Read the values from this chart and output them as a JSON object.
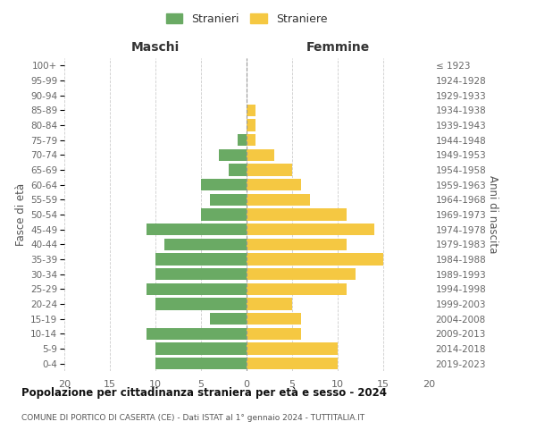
{
  "age_groups": [
    "0-4",
    "5-9",
    "10-14",
    "15-19",
    "20-24",
    "25-29",
    "30-34",
    "35-39",
    "40-44",
    "45-49",
    "50-54",
    "55-59",
    "60-64",
    "65-69",
    "70-74",
    "75-79",
    "80-84",
    "85-89",
    "90-94",
    "95-99",
    "100+"
  ],
  "birth_years": [
    "2019-2023",
    "2014-2018",
    "2009-2013",
    "2004-2008",
    "1999-2003",
    "1994-1998",
    "1989-1993",
    "1984-1988",
    "1979-1983",
    "1974-1978",
    "1969-1973",
    "1964-1968",
    "1959-1963",
    "1954-1958",
    "1949-1953",
    "1944-1948",
    "1939-1943",
    "1934-1938",
    "1929-1933",
    "1924-1928",
    "≤ 1923"
  ],
  "males": [
    10,
    10,
    11,
    4,
    10,
    11,
    10,
    10,
    9,
    11,
    5,
    4,
    5,
    2,
    3,
    1,
    0,
    0,
    0,
    0,
    0
  ],
  "females": [
    10,
    10,
    6,
    6,
    5,
    11,
    12,
    15,
    11,
    14,
    11,
    7,
    6,
    5,
    3,
    1,
    1,
    1,
    0,
    0,
    0
  ],
  "male_color": "#6aaa64",
  "female_color": "#f5c842",
  "male_label": "Stranieri",
  "female_label": "Straniere",
  "title_main": "Popolazione per cittadinanza straniera per età e sesso - 2024",
  "title_sub": "COMUNE DI PORTICO DI CASERTA (CE) - Dati ISTAT al 1° gennaio 2024 - TUTTITALIA.IT",
  "left_header": "Maschi",
  "right_header": "Femmine",
  "left_ylabel": "Fasce di età",
  "right_ylabel": "Anni di nascita",
  "xlim": 20,
  "background_color": "#ffffff",
  "grid_color": "#cccccc"
}
